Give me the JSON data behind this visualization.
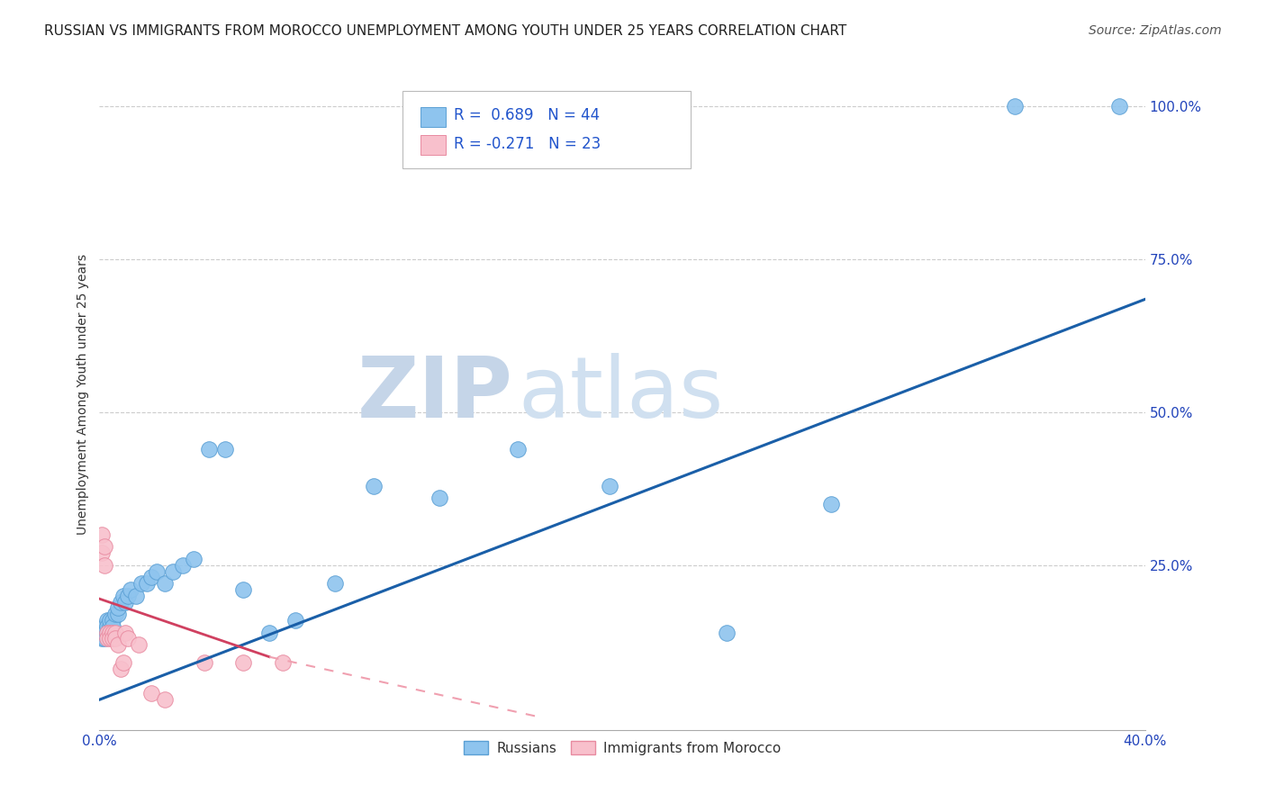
{
  "title": "RUSSIAN VS IMMIGRANTS FROM MOROCCO UNEMPLOYMENT AMONG YOUTH UNDER 25 YEARS CORRELATION CHART",
  "source": "Source: ZipAtlas.com",
  "ylabel": "Unemployment Among Youth under 25 years",
  "xlim": [
    0.0,
    0.4
  ],
  "ylim": [
    -0.02,
    1.08
  ],
  "xticks": [
    0.0,
    0.08,
    0.16,
    0.24,
    0.32,
    0.4
  ],
  "xtick_labels": [
    "0.0%",
    "",
    "",
    "",
    "",
    "40.0%"
  ],
  "ytick_positions": [
    0.0,
    0.25,
    0.5,
    0.75,
    1.0
  ],
  "ytick_labels": [
    "",
    "25.0%",
    "50.0%",
    "75.0%",
    "100.0%"
  ],
  "russian_x": [
    0.001,
    0.001,
    0.002,
    0.002,
    0.002,
    0.003,
    0.003,
    0.003,
    0.004,
    0.004,
    0.004,
    0.005,
    0.005,
    0.006,
    0.007,
    0.007,
    0.008,
    0.009,
    0.01,
    0.011,
    0.012,
    0.014,
    0.016,
    0.018,
    0.02,
    0.022,
    0.025,
    0.028,
    0.032,
    0.036,
    0.042,
    0.048,
    0.055,
    0.065,
    0.075,
    0.09,
    0.105,
    0.13,
    0.16,
    0.195,
    0.24,
    0.28,
    0.35,
    0.39
  ],
  "russian_y": [
    0.14,
    0.13,
    0.15,
    0.13,
    0.14,
    0.14,
    0.16,
    0.15,
    0.15,
    0.14,
    0.16,
    0.16,
    0.15,
    0.17,
    0.17,
    0.18,
    0.19,
    0.2,
    0.19,
    0.2,
    0.21,
    0.2,
    0.22,
    0.22,
    0.23,
    0.24,
    0.22,
    0.24,
    0.25,
    0.26,
    0.44,
    0.44,
    0.21,
    0.14,
    0.16,
    0.22,
    0.38,
    0.36,
    0.44,
    0.38,
    0.14,
    0.35,
    1.0,
    1.0
  ],
  "morocco_x": [
    0.001,
    0.001,
    0.002,
    0.002,
    0.003,
    0.003,
    0.004,
    0.004,
    0.005,
    0.005,
    0.006,
    0.006,
    0.007,
    0.008,
    0.009,
    0.01,
    0.011,
    0.015,
    0.02,
    0.025,
    0.04,
    0.055,
    0.07
  ],
  "morocco_y": [
    0.3,
    0.27,
    0.28,
    0.25,
    0.14,
    0.13,
    0.14,
    0.13,
    0.14,
    0.13,
    0.14,
    0.13,
    0.12,
    0.08,
    0.09,
    0.14,
    0.13,
    0.12,
    0.04,
    0.03,
    0.09,
    0.09,
    0.09
  ],
  "russian_trend_x": [
    0.0,
    0.4
  ],
  "russian_trend_y": [
    0.03,
    0.685
  ],
  "morocco_trend_x": [
    0.0,
    0.17
  ],
  "morocco_trend_y": [
    0.195,
    0.0
  ],
  "russian_color": "#8EC4EE",
  "russian_edge_color": "#5A9FD4",
  "morocco_color": "#F8C0CC",
  "morocco_edge_color": "#E88AA0",
  "trend_russian_color": "#1A5FA8",
  "trend_morocco_color": "#D04060",
  "trend_morocco_dash_color": "#F0A0B0",
  "r_russian": "0.689",
  "n_russian": "44",
  "r_morocco": "-0.271",
  "n_morocco": "23",
  "legend_r_color": "#2255CC",
  "watermark_zip": "ZIP",
  "watermark_atlas": "atlas",
  "watermark_zip_color": "#C5D5E8",
  "watermark_atlas_color": "#D0E0F0",
  "grid_color": "#CCCCCC",
  "background_color": "#FFFFFF",
  "title_fontsize": 11,
  "axis_label_fontsize": 10,
  "tick_fontsize": 11,
  "source_fontsize": 10
}
